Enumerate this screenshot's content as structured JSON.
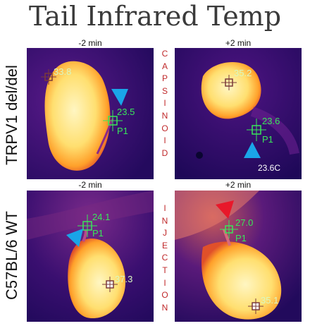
{
  "title": "Tail Infrared Temp",
  "row_labels": [
    "TRPV1 del/del",
    "C57BL/6 WT"
  ],
  "col_labels": {
    "top_left": "-2 min",
    "top_right": "+2 min",
    "bottom_left": "-2 min",
    "bottom_right": "+2 min"
  },
  "middle_labels": {
    "top": [
      "C",
      "A",
      "P",
      "S",
      "I",
      "N",
      "O",
      "I",
      "D"
    ],
    "bottom": [
      "I",
      "N",
      "J",
      "E",
      "C",
      "T",
      "I",
      "O",
      "N"
    ]
  },
  "panels": {
    "tl": {
      "body_temp": "33.8",
      "tail_temp": "23.5",
      "point": "P1"
    },
    "tr": {
      "body_temp": "35.2",
      "tail_temp": "23.6",
      "point": "P1",
      "readout": "23.6C"
    },
    "bl": {
      "body_temp": "37.3",
      "tail_temp": "24.1",
      "point": "P1"
    },
    "br": {
      "body_temp": "35.1",
      "tail_temp": "27.0",
      "point": "P1"
    }
  },
  "colors": {
    "background_ir": "#2a0a66",
    "body_hot": "#ffe98a",
    "marker_green": "#39e65a",
    "arrow_blue": "#1aa5e8",
    "arrow_red": "#e8182a",
    "middle_text": "#c0292b"
  }
}
